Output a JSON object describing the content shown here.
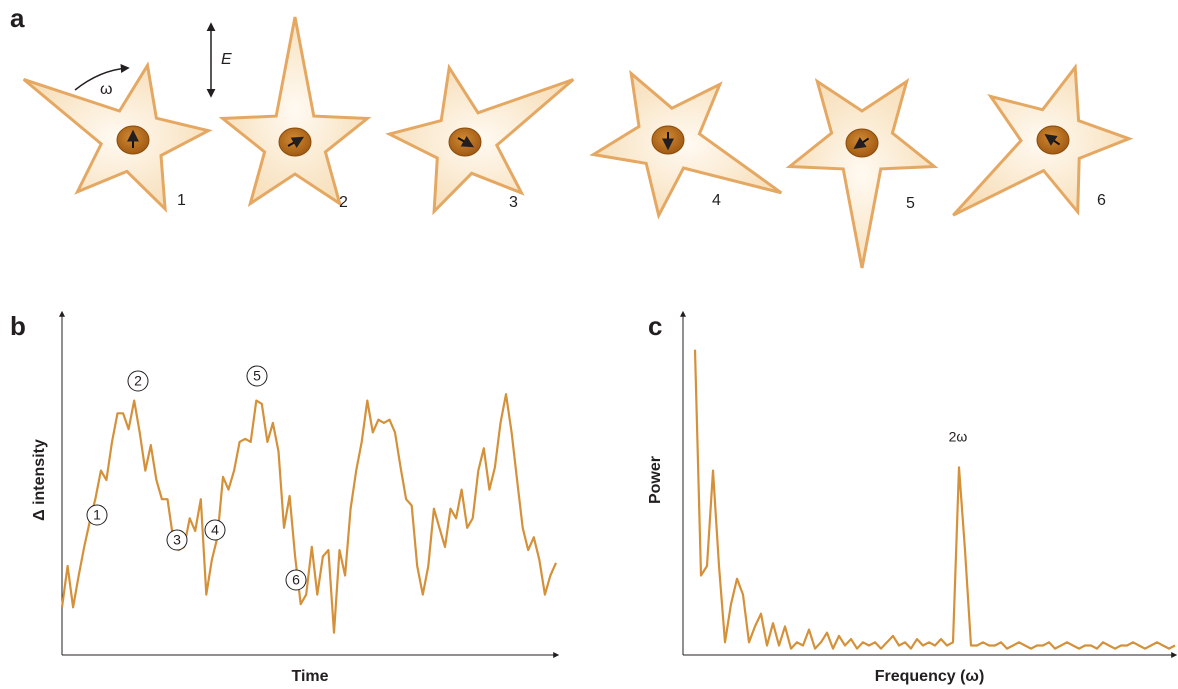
{
  "panel_labels": [
    "a",
    "b",
    "c"
  ],
  "diagram": {
    "rotation_label": "ω",
    "field_label": "E",
    "stars": [
      {
        "label": "1"
      },
      {
        "label": "2"
      },
      {
        "label": "3"
      },
      {
        "label": "4"
      },
      {
        "label": "5"
      },
      {
        "label": "6"
      }
    ]
  },
  "chart_data": [
    {
      "type": "line",
      "x_label": "Time",
      "y_label": "Δ intensity",
      "color": "#d4913a",
      "ylim": [
        0,
        100
      ],
      "annotations": [
        "1",
        "2",
        "3",
        "4",
        "5",
        "6"
      ],
      "values": [
        15,
        28,
        15,
        25,
        34,
        42,
        49,
        58,
        55,
        67,
        76,
        76,
        71,
        80,
        70,
        58,
        66,
        55,
        49,
        49,
        37,
        33,
        34,
        43,
        39,
        49,
        19,
        30,
        37,
        56,
        52,
        58,
        67,
        68,
        67,
        80,
        79,
        67,
        73,
        64,
        40,
        50,
        31,
        16,
        19,
        34,
        19,
        31,
        33,
        7,
        33,
        25,
        46,
        58,
        67,
        80,
        70,
        74,
        73,
        74,
        70,
        59,
        49,
        47,
        28,
        19,
        28,
        46,
        40,
        34,
        46,
        43,
        52,
        40,
        43,
        58,
        65,
        52,
        59,
        73,
        82,
        70,
        55,
        40,
        33,
        37,
        30,
        19,
        25,
        29
      ]
    },
    {
      "type": "line",
      "x_label": "Frequency (ω)",
      "y_label": "Power",
      "color": "#d4913a",
      "ylim": [
        0,
        100
      ],
      "annotations": [
        "2ω"
      ],
      "values": [
        96,
        25,
        28,
        58,
        28,
        4,
        16,
        24,
        19,
        4,
        9,
        13,
        3,
        10,
        3,
        9,
        2,
        4,
        3,
        8,
        2,
        4,
        7,
        2,
        6,
        3,
        5,
        2,
        4,
        3,
        4,
        2,
        4,
        6,
        3,
        4,
        2,
        5,
        3,
        4,
        3,
        5,
        3,
        4,
        59,
        33,
        3,
        3,
        4,
        3,
        3,
        4,
        2,
        3,
        4,
        3,
        2,
        3,
        3,
        4,
        2,
        3,
        4,
        3,
        2,
        3,
        3,
        2,
        4,
        3,
        2,
        3,
        3,
        4,
        3,
        2,
        3,
        4,
        3,
        2,
        3
      ]
    }
  ]
}
